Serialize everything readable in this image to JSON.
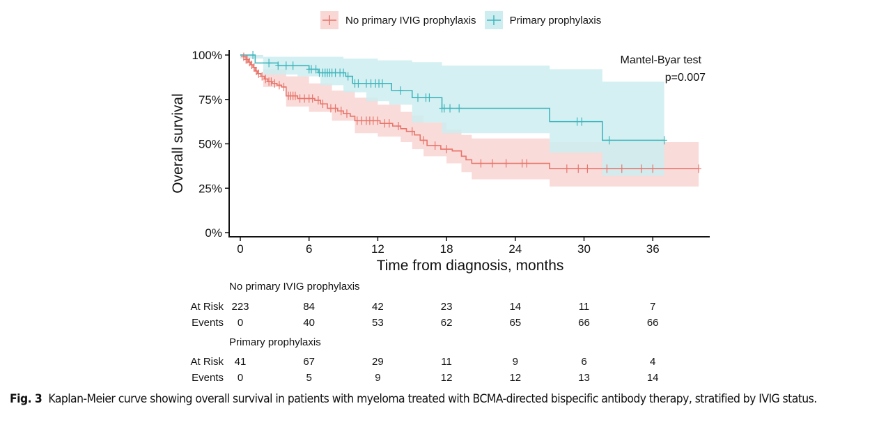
{
  "chart_data": {
    "type": "line",
    "subtype": "kaplan-meier",
    "title": "",
    "xlabel": "Time from diagnosis, months",
    "ylabel": "Overall survival",
    "xlim": [
      -1,
      41
    ],
    "ylim": [
      0,
      1
    ],
    "x_ticks": [
      0,
      6,
      12,
      18,
      24,
      30,
      36
    ],
    "x_tick_labels": [
      "0",
      "6",
      "12",
      "18",
      "24",
      "30",
      "36"
    ],
    "y_ticks": [
      0,
      0.25,
      0.5,
      0.75,
      1.0
    ],
    "y_tick_labels": [
      "0%",
      "25%",
      "50%",
      "75%",
      "100%"
    ],
    "grid": false,
    "legend": {
      "placement": "top",
      "entries": [
        "No primary IVIG prophylaxis",
        "Primary prophylaxis"
      ]
    },
    "annotation": {
      "line1": "Mantel-Byar test",
      "line2": "p=0.007",
      "placement": "top-right"
    },
    "series": [
      {
        "name": "No primary IVIG prophylaxis",
        "color": "#E8756B",
        "band_color": "#F8D7D5",
        "steps": [
          [
            0,
            1.0
          ],
          [
            0.3,
            0.99
          ],
          [
            0.5,
            0.975
          ],
          [
            0.7,
            0.96
          ],
          [
            0.9,
            0.945
          ],
          [
            1.1,
            0.93
          ],
          [
            1.3,
            0.91
          ],
          [
            1.5,
            0.895
          ],
          [
            1.8,
            0.88
          ],
          [
            2.1,
            0.865
          ],
          [
            2.4,
            0.85
          ],
          [
            2.8,
            0.84
          ],
          [
            3.2,
            0.83
          ],
          [
            3.6,
            0.82
          ],
          [
            4.0,
            0.77
          ],
          [
            5.0,
            0.755
          ],
          [
            6.5,
            0.745
          ],
          [
            7.0,
            0.725
          ],
          [
            7.6,
            0.7
          ],
          [
            8.5,
            0.685
          ],
          [
            9.0,
            0.67
          ],
          [
            9.6,
            0.655
          ],
          [
            10.0,
            0.63
          ],
          [
            12.2,
            0.615
          ],
          [
            13.3,
            0.6
          ],
          [
            14.0,
            0.585
          ],
          [
            14.5,
            0.57
          ],
          [
            15.2,
            0.55
          ],
          [
            15.7,
            0.52
          ],
          [
            16.3,
            0.49
          ],
          [
            17.5,
            0.47
          ],
          [
            18.5,
            0.46
          ],
          [
            19.3,
            0.43
          ],
          [
            19.7,
            0.41
          ],
          [
            20.2,
            0.39
          ],
          [
            27.0,
            0.36
          ],
          [
            40.0,
            0.36
          ]
        ],
        "ci_upper": [
          [
            0,
            1.0
          ],
          [
            2,
            0.92
          ],
          [
            4,
            0.88
          ],
          [
            6,
            0.84
          ],
          [
            8,
            0.8
          ],
          [
            10,
            0.76
          ],
          [
            12,
            0.72
          ],
          [
            14,
            0.68
          ],
          [
            15,
            0.66
          ],
          [
            16,
            0.62
          ],
          [
            18,
            0.58
          ],
          [
            19.3,
            0.55
          ],
          [
            20.2,
            0.53
          ],
          [
            27.0,
            0.51
          ],
          [
            40.0,
            0.51
          ]
        ],
        "ci_lower": [
          [
            0,
            0.99
          ],
          [
            2,
            0.82
          ],
          [
            4,
            0.71
          ],
          [
            6,
            0.68
          ],
          [
            8,
            0.63
          ],
          [
            10,
            0.56
          ],
          [
            12,
            0.54
          ],
          [
            14,
            0.51
          ],
          [
            15,
            0.47
          ],
          [
            16,
            0.43
          ],
          [
            18,
            0.39
          ],
          [
            19.3,
            0.34
          ],
          [
            20.2,
            0.3
          ],
          [
            27.0,
            0.26
          ],
          [
            40.0,
            0.26
          ]
        ],
        "censor_times": [
          0.3,
          0.5,
          0.6,
          0.8,
          1.0,
          1.2,
          1.4,
          1.6,
          1.9,
          2.2,
          2.5,
          2.7,
          3.0,
          3.4,
          3.8,
          4.2,
          4.4,
          4.6,
          4.8,
          5.2,
          5.6,
          6.0,
          6.3,
          6.8,
          7.2,
          7.9,
          8.3,
          8.8,
          9.3,
          10.2,
          10.6,
          11.0,
          11.3,
          11.6,
          12.0,
          12.6,
          13.0,
          13.8,
          15.0,
          16.0,
          17.0,
          18.0,
          21.0,
          22.0,
          23.2,
          24.6,
          25.0,
          28.5,
          29.5,
          30.3,
          32.0,
          33.3,
          35.0,
          36.0,
          40.0
        ]
      },
      {
        "name": "Primary prophylaxis",
        "color": "#3EB5BC",
        "band_color": "#CDEDF0",
        "steps": [
          [
            0,
            1.0
          ],
          [
            1.3,
            0.955
          ],
          [
            3.3,
            0.94
          ],
          [
            6.0,
            0.92
          ],
          [
            6.8,
            0.9
          ],
          [
            9.2,
            0.88
          ],
          [
            9.8,
            0.84
          ],
          [
            13.2,
            0.8
          ],
          [
            15.0,
            0.76
          ],
          [
            17.6,
            0.7
          ],
          [
            27.0,
            0.625
          ],
          [
            31.6,
            0.52
          ],
          [
            37.0,
            0.52
          ]
        ],
        "ci_upper": [
          [
            0,
            1.0
          ],
          [
            2,
            0.99
          ],
          [
            6,
            0.99
          ],
          [
            9,
            0.98
          ],
          [
            12,
            0.97
          ],
          [
            15,
            0.96
          ],
          [
            17.6,
            0.94
          ],
          [
            27.0,
            0.92
          ],
          [
            31.6,
            0.85
          ],
          [
            37.0,
            0.85
          ]
        ],
        "ci_lower": [
          [
            0,
            0.98
          ],
          [
            2,
            0.89
          ],
          [
            5,
            0.88
          ],
          [
            7,
            0.83
          ],
          [
            9,
            0.79
          ],
          [
            11,
            0.74
          ],
          [
            13,
            0.72
          ],
          [
            15,
            0.62
          ],
          [
            17.6,
            0.56
          ],
          [
            27.0,
            0.45
          ],
          [
            31.6,
            0.32
          ],
          [
            37.0,
            0.32
          ]
        ],
        "censor_times": [
          1.1,
          2.5,
          3.3,
          4.0,
          4.6,
          6.0,
          6.2,
          6.6,
          6.9,
          7.2,
          7.4,
          7.6,
          7.8,
          8.0,
          8.3,
          8.7,
          9.0,
          9.4,
          10.0,
          10.3,
          11.0,
          11.4,
          11.8,
          12.1,
          12.4,
          14.0,
          15.5,
          16.2,
          16.5,
          17.6,
          17.8,
          18.3,
          19.1,
          29.4,
          29.8,
          32.2,
          37.0
        ]
      }
    ],
    "risk_table": {
      "time_points": [
        0,
        6,
        12,
        18,
        24,
        30,
        36
      ],
      "row_labels": {
        "at_risk": "At Risk",
        "events": "Events"
      },
      "groups": [
        {
          "name": "No primary IVIG prophylaxis",
          "at_risk": [
            "223",
            "84",
            "42",
            "23",
            "14",
            "11",
            "7"
          ],
          "events": [
            "0",
            "40",
            "53",
            "62",
            "65",
            "66",
            "66"
          ]
        },
        {
          "name": "Primary prophylaxis",
          "at_risk": [
            "41",
            "67",
            "29",
            "11",
            "9",
            "6",
            "4"
          ],
          "events": [
            "0",
            "5",
            "9",
            "12",
            "12",
            "13",
            "14"
          ]
        }
      ]
    }
  },
  "caption": {
    "label": "Fig. 3",
    "text": "Kaplan-Meier curve showing overall survival in patients with myeloma treated with BCMA-directed bispecific antibody therapy, stratified by IVIG status."
  }
}
